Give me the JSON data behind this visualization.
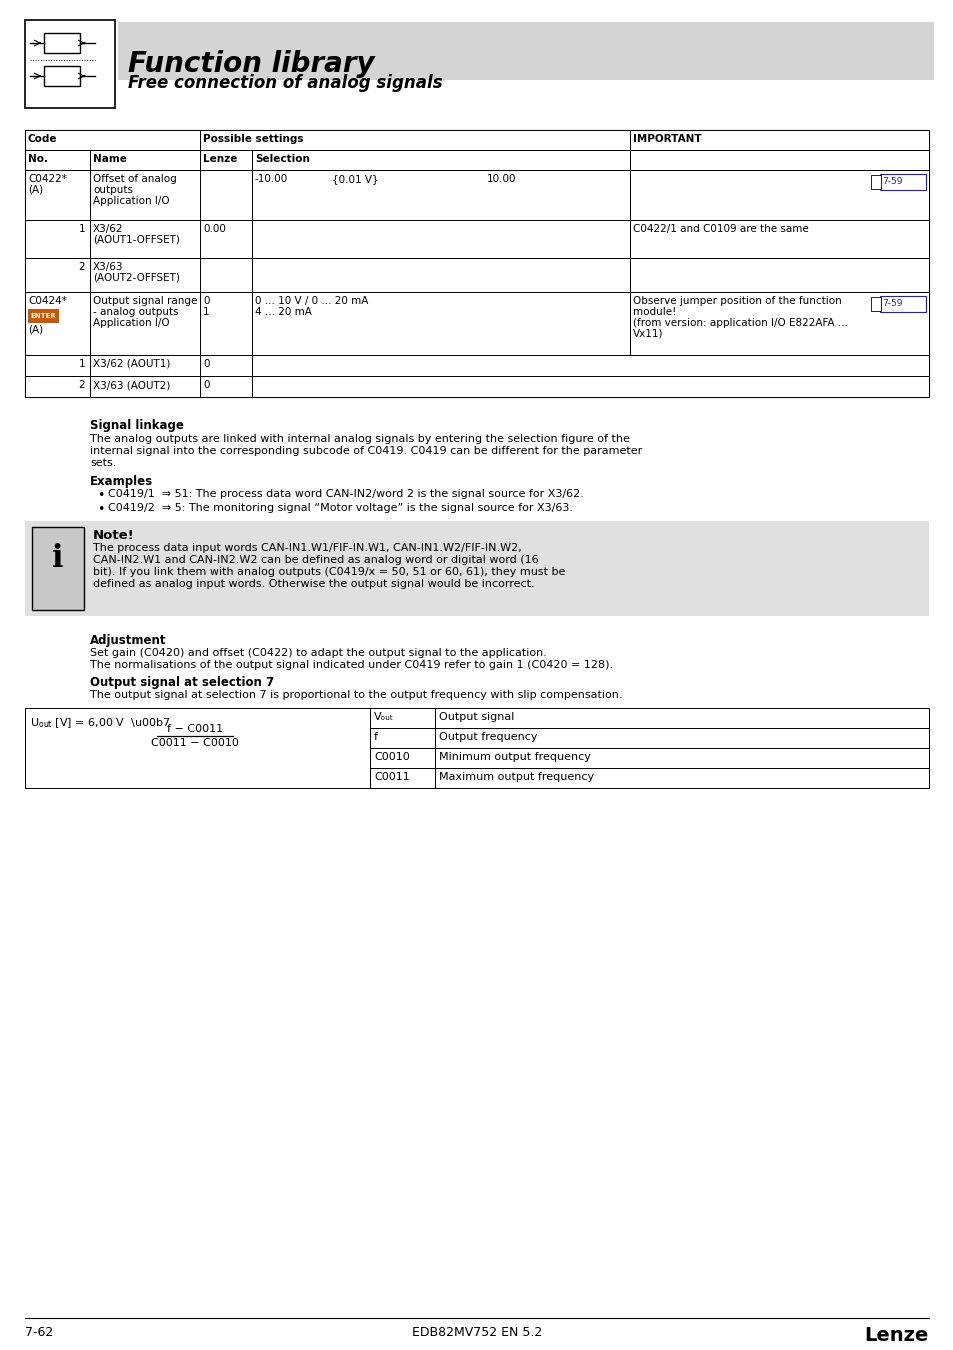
{
  "title": "Function library",
  "subtitle": "Free connection of analog signals",
  "bg_color": "#ffffff",
  "header_bg": "#d9d9d9",
  "note_bg": "#e0e0e0",
  "footer_left": "7-62",
  "footer_center": "EDB82MV752 EN 5.2",
  "footer_right": "Lenze",
  "signal_linkage_title": "Signal linkage",
  "sl_line1": "The analog outputs are linked with internal analog signals by entering the selection figure of the",
  "sl_line2": "internal signal into the corresponding subcode of C0419. C0419 can be different for the parameter",
  "sl_line3": "sets.",
  "examples_title": "Examples",
  "example1": "C0419/1  ⇒ 51: The process data word CAN-IN2/word 2 is the signal source for X3/62.",
  "example2": "C0419/2  ⇒ 5: The monitoring signal “Motor voltage” is the signal source for X3/63.",
  "note_title": "Note!",
  "note_line1": "The process data input words CAN-IN1.W1/FIF-IN.W1, CAN-IN1.W2/FIF-IN.W2,",
  "note_line2": "CAN-IN2.W1 and CAN-IN2.W2 can be defined as analog word or digital word (16",
  "note_line3": "bit). If you link them with analog outputs (C0419/x = 50, 51 or 60, 61), they must be",
  "note_line4": "defined as analog input words. Otherwise the output signal would be incorrect.",
  "adjustment_title": "Adjustment",
  "adj_text1": "Set gain (C0420) and offset (C0422) to adapt the output signal to the application.",
  "adj_text2": "The normalisations of the output signal indicated under C0419 refer to gain 1 (C0420 = 128).",
  "output_title": "Output signal at selection 7",
  "output_text": "The output signal at selection 7 is proportional to the output frequency with slip compensation.",
  "formula_sym": [
    "Vₒᵤₜ",
    "f",
    "C0010",
    "C0011"
  ],
  "formula_desc": [
    "Output signal",
    "Output frequency",
    "Minimum output frequency",
    "Maximum output frequency"
  ]
}
